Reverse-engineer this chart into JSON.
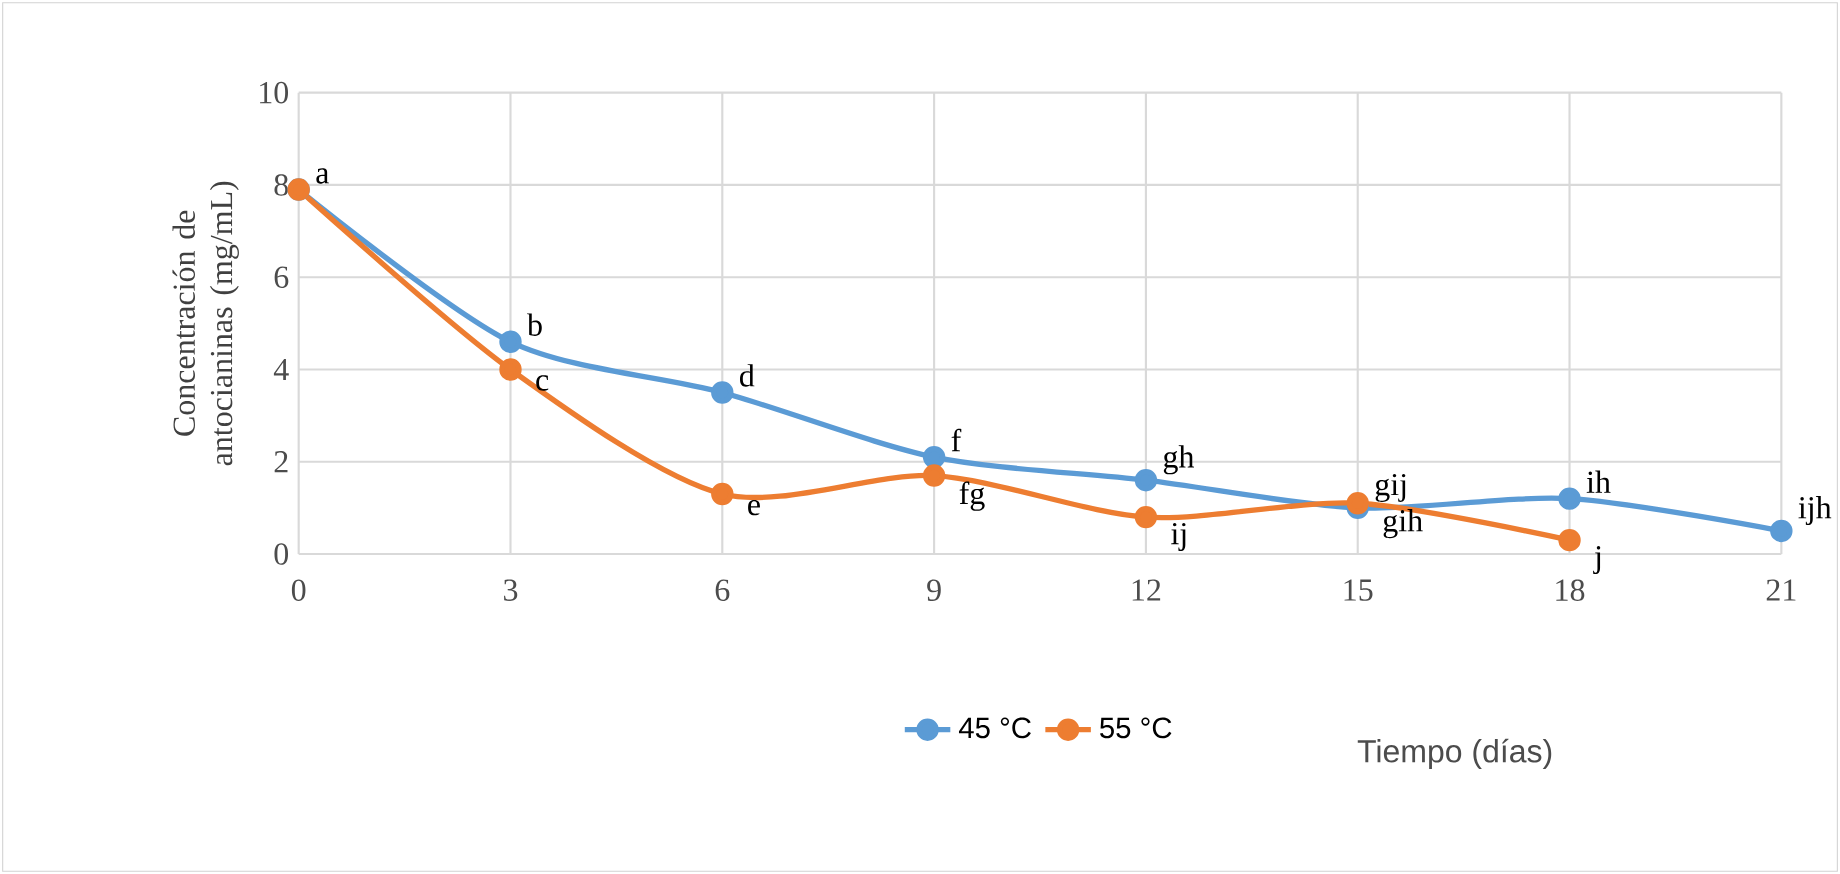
{
  "chart_data": {
    "type": "line",
    "xlabel": "Tiempo (días)",
    "ylabel": "Concentración de antocianinas (mg/mL)",
    "x": [
      0,
      3,
      6,
      9,
      12,
      15,
      18,
      21
    ],
    "series": [
      {
        "name": "45 °C",
        "color": "#5b9bd5",
        "values": [
          7.9,
          4.6,
          3.5,
          2.1,
          1.6,
          1.0,
          1.2,
          0.5
        ],
        "value_labels": [
          "a",
          "b",
          "d",
          "f",
          "gh",
          "gij",
          "ih",
          "ijh"
        ]
      },
      {
        "name": "55 °C",
        "color": "#ed7d31",
        "values": [
          7.9,
          4.0,
          1.3,
          1.7,
          0.8,
          1.1,
          0.3,
          null
        ],
        "value_labels": [
          null,
          "c",
          "e",
          "fg",
          "ij",
          "gih",
          "j",
          null
        ]
      }
    ],
    "xlim": [
      0,
      21
    ],
    "xticks": [
      0,
      3,
      6,
      9,
      12,
      15,
      18,
      21
    ],
    "ylim": [
      0,
      10
    ],
    "yticks": [
      0,
      2,
      4,
      6,
      8,
      10
    ],
    "grid": true,
    "legend": "bottom",
    "marker": "circle",
    "line_style": "solid"
  }
}
